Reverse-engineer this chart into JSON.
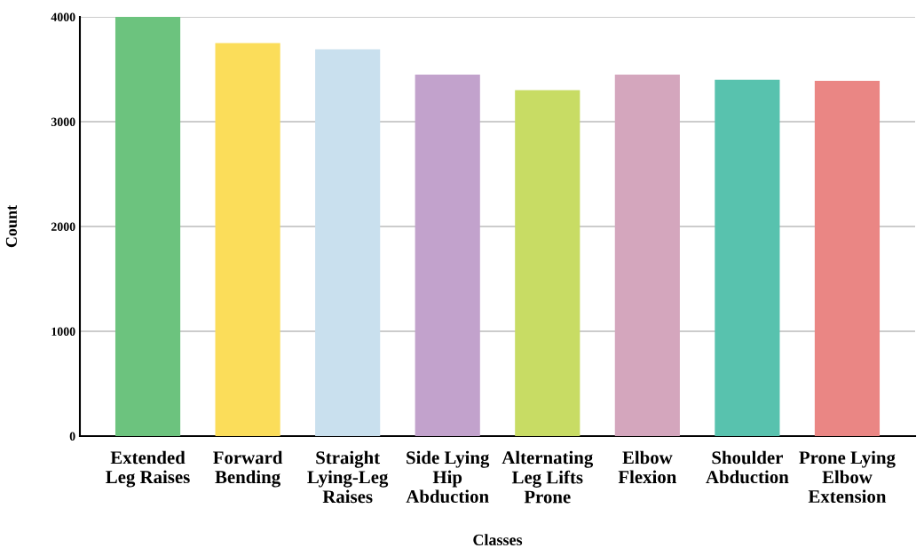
{
  "chart_data": {
    "type": "bar",
    "xlabel": "Classes",
    "ylabel": "Count",
    "categories": [
      "Extended\nLeg Raises",
      "Forward\nBending",
      "Straight\nLying-Leg\nRaises",
      "Side Lying\nHip\nAbduction",
      "Alternating\nLeg Lifts\nProne",
      "Elbow\nFlexion",
      "Shoulder\nAbduction",
      "Prone Lying\nElbow\nExtension"
    ],
    "values": [
      4000,
      3750,
      3690,
      3450,
      3300,
      3450,
      3400,
      3390
    ],
    "colors": [
      "#6cc37e",
      "#fbdd5a",
      "#c9e0ee",
      "#c2a2cc",
      "#c8dc64",
      "#d4a6bd",
      "#58c2ae",
      "#ea8684"
    ],
    "ylim": [
      0,
      4000
    ],
    "yticks": [
      0,
      1000,
      2000,
      3000,
      4000
    ],
    "grid": "y"
  }
}
